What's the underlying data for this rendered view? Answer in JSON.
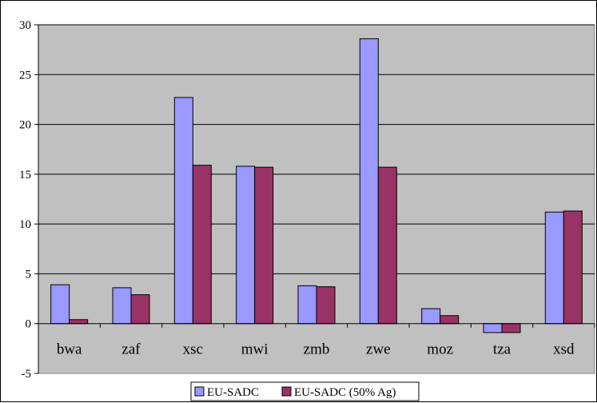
{
  "chart_data": {
    "type": "bar",
    "categories": [
      "bwa",
      "zaf",
      "xsc",
      "mwi",
      "zmb",
      "zwe",
      "moz",
      "tza",
      "xsd"
    ],
    "series": [
      {
        "name": "EU-SADC",
        "color": "#9999ff",
        "values": [
          3.9,
          3.6,
          22.7,
          15.8,
          3.8,
          28.6,
          1.5,
          -0.9,
          11.2
        ]
      },
      {
        "name": "EU-SADC (50% Ag)",
        "color": "#993366",
        "values": [
          0.4,
          2.9,
          15.9,
          15.7,
          3.7,
          15.7,
          0.8,
          -0.9,
          11.3
        ]
      }
    ],
    "title": "",
    "xlabel": "",
    "ylabel": "",
    "ylim": [
      -5,
      30
    ],
    "yticks": [
      -5,
      0,
      5,
      10,
      15,
      20,
      25,
      30
    ],
    "grid": true,
    "plot_background": "#c0c0c0",
    "legend_position": "bottom"
  }
}
